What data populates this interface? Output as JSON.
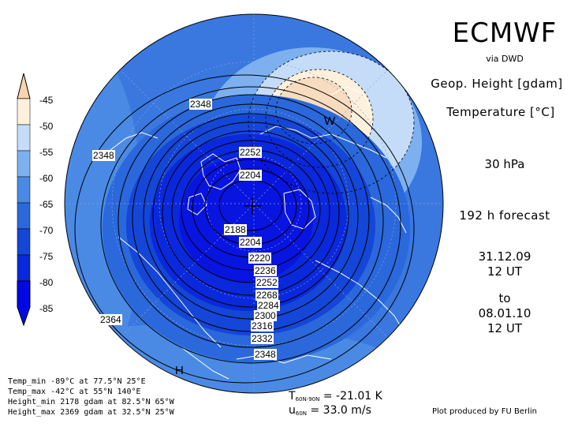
{
  "header": {
    "title": "ECMWF",
    "subtitle": "via DWD",
    "geo_label": "Geop. Height [gdam]",
    "temp_label": "Temperature [°C]",
    "level": "30 hPa",
    "forecast": "192 h forecast",
    "start_date": "31.12.09",
    "start_time": "12 UT",
    "to": "to",
    "end_date": "08.01.10",
    "end_time": "12 UT"
  },
  "colorbar": {
    "ticks": [
      "-45",
      "-50",
      "-55",
      "-60",
      "-65",
      "-70",
      "-75",
      "-80",
      "-85"
    ],
    "colors": [
      "#f8d4b0",
      "#fdf0dc",
      "#c4dcf8",
      "#7eb0f0",
      "#4a8ae4",
      "#2a68dc",
      "#1446d8",
      "#0a28dc",
      "#0008e8"
    ]
  },
  "map": {
    "height_labels": [
      "2348",
      "2348",
      "2252",
      "2204",
      "2188",
      "2204",
      "2220",
      "2236",
      "2252",
      "2268",
      "2284",
      "2300",
      "2316",
      "2332",
      "2348",
      "2364"
    ],
    "warm_label": "W",
    "high_label": "H",
    "colors": {
      "warm": "#f8dcc0",
      "cold_core": "#0814e0",
      "outer": "#3a78e0"
    }
  },
  "stats": {
    "temp_min": "Temp_min -89°C at 77.5°N 25°E",
    "temp_max": "Temp_max -42°C at 55°N 140°E",
    "height_min": "Height_min 2178 gdam at 82.5°N 65°W",
    "height_max": "Height_max 2369 gdam at 32.5°N 25°W"
  },
  "diagnostics": {
    "t_symbol": "T",
    "t_sub": "60N-90N",
    "t_value": "= -21.01 K",
    "u_symbol": "u",
    "u_sub": "60N",
    "u_value": "= 33.0 m/s"
  },
  "credit": "Plot produced by FU Berlin"
}
